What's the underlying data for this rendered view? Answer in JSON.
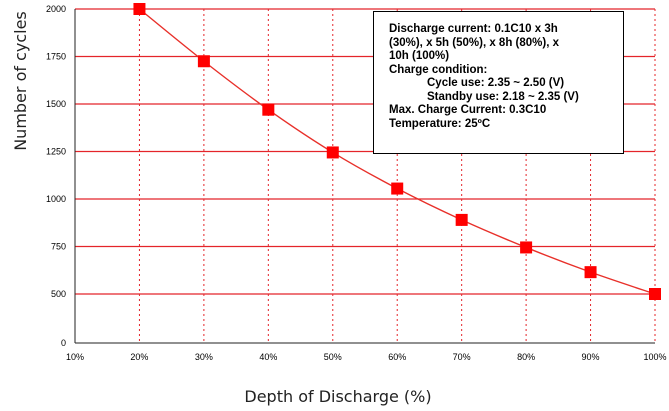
{
  "chart_data": {
    "type": "line",
    "xlabel": "Depth of Discharge (%)",
    "ylabel": "Number of cycles",
    "x_ticks": [
      "10%",
      "20%",
      "30%",
      "40%",
      "50%",
      "60%",
      "70%",
      "80%",
      "90%",
      "100%"
    ],
    "y_ticks": [
      "0",
      "500",
      "750",
      "1000",
      "1250",
      "1500",
      "1750",
      "2000"
    ],
    "xlim": [
      10,
      100
    ],
    "ylim": [
      0,
      2000
    ],
    "series": [
      {
        "x": [
          20,
          30,
          40,
          50,
          60,
          70,
          80,
          90,
          100
        ],
        "y": [
          2000,
          1725,
          1470,
          1245,
          1055,
          890,
          745,
          615,
          500
        ]
      }
    ],
    "grid": true,
    "colors": {
      "line": "#e8302a",
      "marker": "#ff0000",
      "grid": "#e4242a"
    }
  },
  "note": {
    "lines": [
      {
        "text": "Discharge current: 0.1C10 x 3h",
        "indent": false
      },
      {
        "text": "(30%), x 5h (50%), x 8h (80%), x",
        "indent": false
      },
      {
        "text": "10h (100%)",
        "indent": false
      },
      {
        "text": "Charge condition:",
        "indent": false
      },
      {
        "text": "Cycle use: 2.35 ~ 2.50 (V)",
        "indent": true
      },
      {
        "text": "Standby use: 2.18 ~ 2.35 (V)",
        "indent": true
      },
      {
        "text": "Max. Charge Current: 0.3C10",
        "indent": false
      },
      {
        "text": "Temperature: 25ºC",
        "indent": false
      }
    ]
  }
}
